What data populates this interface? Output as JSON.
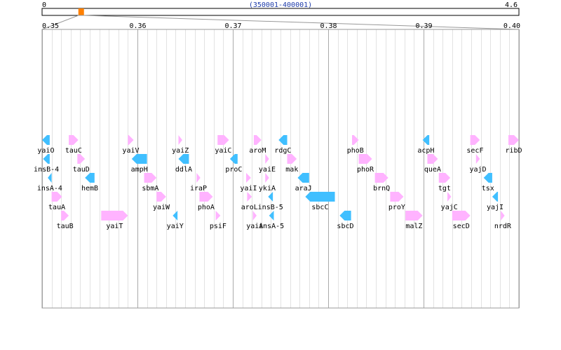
{
  "overview": {
    "start_label": "0",
    "end_label": "4.6",
    "range_label": "(350001-400001)",
    "genome_mb": 4.6,
    "window_mb": [
      0.35,
      0.4
    ],
    "marker_color": "#ff8000"
  },
  "axis": {
    "min": 0.35,
    "max": 0.4,
    "ticks": [
      "0.35",
      "0.36",
      "0.37",
      "0.38",
      "0.39",
      "0.40"
    ],
    "tick_values": [
      0.35,
      0.36,
      0.37,
      0.38,
      0.39,
      0.4
    ],
    "minor_step": 0.001
  },
  "colors": {
    "plus": "#ffb3ff",
    "minus": "#40bfff"
  },
  "genes": [
    {
      "name": "yaiO",
      "row": 0,
      "strand": "-",
      "start": 0.35,
      "end": 0.3508
    },
    {
      "name": "tauC",
      "row": 0,
      "strand": "+",
      "start": 0.3528,
      "end": 0.3538
    },
    {
      "name": "yaiV",
      "row": 0,
      "strand": "+",
      "start": 0.359,
      "end": 0.3596
    },
    {
      "name": "yaiZ",
      "row": 0,
      "strand": "+",
      "start": 0.3643,
      "end": 0.3647
    },
    {
      "name": "yaiC",
      "row": 0,
      "strand": "+",
      "start": 0.3684,
      "end": 0.3696
    },
    {
      "name": "aroM",
      "row": 0,
      "strand": "+",
      "start": 0.3722,
      "end": 0.373
    },
    {
      "name": "rdgC",
      "row": 0,
      "strand": "-",
      "start": 0.3748,
      "end": 0.3757
    },
    {
      "name": "phoB",
      "row": 0,
      "strand": "+",
      "start": 0.3825,
      "end": 0.3832
    },
    {
      "name": "acpH",
      "row": 0,
      "strand": "-",
      "start": 0.3899,
      "end": 0.3906
    },
    {
      "name": "secF",
      "row": 0,
      "strand": "+",
      "start": 0.3949,
      "end": 0.3959
    },
    {
      "name": "ribD",
      "row": 0,
      "strand": "+",
      "start": 0.3989,
      "end": 0.4
    },
    {
      "name": "insB-4",
      "row": 1,
      "strand": "-",
      "start": 0.3501,
      "end": 0.3508
    },
    {
      "name": "tauD",
      "row": 1,
      "strand": "+",
      "start": 0.3537,
      "end": 0.3545
    },
    {
      "name": "ampH",
      "row": 1,
      "strand": "-",
      "start": 0.3594,
      "end": 0.361
    },
    {
      "name": "ddlA",
      "row": 1,
      "strand": "-",
      "start": 0.3643,
      "end": 0.3654
    },
    {
      "name": "proC",
      "row": 1,
      "strand": "-",
      "start": 0.3697,
      "end": 0.3705
    },
    {
      "name": "yaiE",
      "row": 1,
      "strand": "+",
      "start": 0.3734,
      "end": 0.3738
    },
    {
      "name": "mak",
      "row": 1,
      "strand": "+",
      "start": 0.3757,
      "end": 0.3767
    },
    {
      "name": "phoR",
      "row": 1,
      "strand": "+",
      "start": 0.3832,
      "end": 0.3846
    },
    {
      "name": "queA",
      "row": 1,
      "strand": "+",
      "start": 0.3904,
      "end": 0.3915
    },
    {
      "name": "yajD",
      "row": 1,
      "strand": "+",
      "start": 0.3955,
      "end": 0.3959
    },
    {
      "name": "insA-4",
      "row": 2,
      "strand": "-",
      "start": 0.3506,
      "end": 0.351
    },
    {
      "name": "hemB",
      "row": 2,
      "strand": "-",
      "start": 0.3545,
      "end": 0.3555
    },
    {
      "name": "sbmA",
      "row": 2,
      "strand": "+",
      "start": 0.3607,
      "end": 0.362
    },
    {
      "name": "iraP",
      "row": 2,
      "strand": "+",
      "start": 0.3662,
      "end": 0.3666
    },
    {
      "name": "yaiI",
      "row": 2,
      "strand": "+",
      "start": 0.3714,
      "end": 0.3719
    },
    {
      "name": "ykiA",
      "row": 2,
      "strand": "+",
      "start": 0.3734,
      "end": 0.3738
    },
    {
      "name": "araJ",
      "row": 2,
      "strand": "-",
      "start": 0.3768,
      "end": 0.378
    },
    {
      "name": "brnQ",
      "row": 2,
      "strand": "+",
      "start": 0.3849,
      "end": 0.3863
    },
    {
      "name": "tgt",
      "row": 2,
      "strand": "+",
      "start": 0.3916,
      "end": 0.3928
    },
    {
      "name": "tsx",
      "row": 2,
      "strand": "-",
      "start": 0.3963,
      "end": 0.3972
    },
    {
      "name": "tauA",
      "row": 3,
      "strand": "+",
      "start": 0.351,
      "end": 0.3521
    },
    {
      "name": "yaiW",
      "row": 3,
      "strand": "+",
      "start": 0.362,
      "end": 0.363
    },
    {
      "name": "phoA",
      "row": 3,
      "strand": "+",
      "start": 0.3665,
      "end": 0.3679
    },
    {
      "name": "aroL",
      "row": 3,
      "strand": "+",
      "start": 0.3715,
      "end": 0.372
    },
    {
      "name": "insB-5",
      "row": 3,
      "strand": "-",
      "start": 0.3737,
      "end": 0.3742
    },
    {
      "name": "sbcC",
      "row": 3,
      "strand": "-",
      "start": 0.3776,
      "end": 0.3807
    },
    {
      "name": "proY",
      "row": 3,
      "strand": "+",
      "start": 0.3865,
      "end": 0.3879
    },
    {
      "name": "yajC",
      "row": 3,
      "strand": "+",
      "start": 0.3925,
      "end": 0.3929
    },
    {
      "name": "yajI",
      "row": 3,
      "strand": "-",
      "start": 0.3972,
      "end": 0.3978
    },
    {
      "name": "tauB",
      "row": 4,
      "strand": "+",
      "start": 0.352,
      "end": 0.3528
    },
    {
      "name": "yaiT",
      "row": 4,
      "strand": "+",
      "start": 0.3562,
      "end": 0.359
    },
    {
      "name": "yaiY",
      "row": 4,
      "strand": "-",
      "start": 0.3637,
      "end": 0.3642
    },
    {
      "name": "psiF",
      "row": 4,
      "strand": "+",
      "start": 0.3682,
      "end": 0.3687
    },
    {
      "name": "yaiA",
      "row": 4,
      "strand": "+",
      "start": 0.3721,
      "end": 0.3725
    },
    {
      "name": "insA-5",
      "row": 4,
      "strand": "-",
      "start": 0.3738,
      "end": 0.3743
    },
    {
      "name": "sbcD",
      "row": 4,
      "strand": "-",
      "start": 0.3812,
      "end": 0.3824
    },
    {
      "name": "malZ",
      "row": 4,
      "strand": "+",
      "start": 0.3881,
      "end": 0.3899
    },
    {
      "name": "secD",
      "row": 4,
      "strand": "+",
      "start": 0.393,
      "end": 0.3949
    },
    {
      "name": "nrdR",
      "row": 4,
      "strand": "+",
      "start": 0.3981,
      "end": 0.3985
    }
  ]
}
